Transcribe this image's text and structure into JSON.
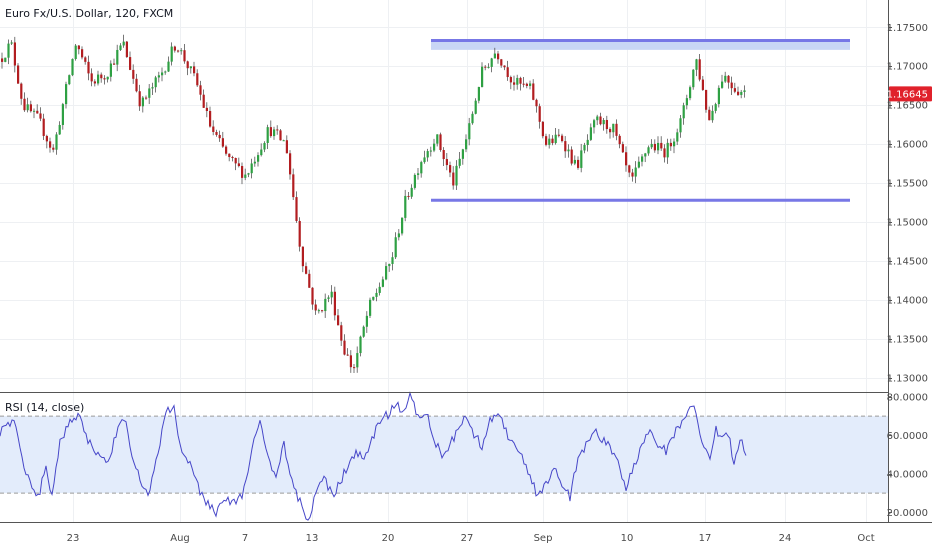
{
  "header": {
    "symbol_title": "Euro Fx/U.S. Dollar, 120, FXCM"
  },
  "price_tag": {
    "value": "1.16645",
    "color": "#e0212b"
  },
  "rsi_panel": {
    "label": "RSI (14, close)"
  },
  "colors": {
    "up_candle": "#2ea043",
    "down_candle": "#b21d20",
    "wick": "#555555",
    "zone_fill": "#c9d6f5",
    "zone_line": "#7777e6",
    "rsi_line": "#4646c8",
    "rsi_band": "#e3ecfb"
  },
  "chart_data": [
    {
      "type": "candlestick",
      "title": "Euro Fx/U.S. Dollar, 120, FXCM",
      "y_axis": {
        "ticks": [
          "1.13000",
          "1.13500",
          "1.14000",
          "1.14500",
          "1.15000",
          "1.15500",
          "1.16000",
          "1.16500",
          "1.17000",
          "1.17500"
        ],
        "range": [
          1.1282,
          1.1785
        ]
      },
      "x_axis": {
        "ticks": [
          "23",
          "Aug",
          "7",
          "13",
          "20",
          "27",
          "Sep",
          "10",
          "17",
          "24",
          "Oct"
        ]
      },
      "last_price": 1.16645,
      "close_path": [
        {
          "x": 0,
          "y": 1.171
        },
        {
          "x": 10,
          "y": 1.173
        },
        {
          "x": 22,
          "y": 1.165
        },
        {
          "x": 38,
          "y": 1.163
        },
        {
          "x": 52,
          "y": 1.159
        },
        {
          "x": 65,
          "y": 1.167
        },
        {
          "x": 75,
          "y": 1.173
        },
        {
          "x": 90,
          "y": 1.168
        },
        {
          "x": 105,
          "y": 1.169
        },
        {
          "x": 122,
          "y": 1.173
        },
        {
          "x": 140,
          "y": 1.165
        },
        {
          "x": 160,
          "y": 1.169
        },
        {
          "x": 175,
          "y": 1.173
        },
        {
          "x": 195,
          "y": 1.168
        },
        {
          "x": 210,
          "y": 1.162
        },
        {
          "x": 228,
          "y": 1.158
        },
        {
          "x": 245,
          "y": 1.156
        },
        {
          "x": 268,
          "y": 1.162
        },
        {
          "x": 285,
          "y": 1.16
        },
        {
          "x": 300,
          "y": 1.146
        },
        {
          "x": 315,
          "y": 1.138
        },
        {
          "x": 330,
          "y": 1.141
        },
        {
          "x": 342,
          "y": 1.134
        },
        {
          "x": 352,
          "y": 1.131
        },
        {
          "x": 368,
          "y": 1.139
        },
        {
          "x": 390,
          "y": 1.145
        },
        {
          "x": 405,
          "y": 1.153
        },
        {
          "x": 420,
          "y": 1.158
        },
        {
          "x": 435,
          "y": 1.161
        },
        {
          "x": 452,
          "y": 1.155
        },
        {
          "x": 468,
          "y": 1.162
        },
        {
          "x": 480,
          "y": 1.169
        },
        {
          "x": 495,
          "y": 1.172
        },
        {
          "x": 512,
          "y": 1.168
        },
        {
          "x": 530,
          "y": 1.167
        },
        {
          "x": 545,
          "y": 1.16
        },
        {
          "x": 560,
          "y": 1.161
        },
        {
          "x": 575,
          "y": 1.157
        },
        {
          "x": 595,
          "y": 1.163
        },
        {
          "x": 612,
          "y": 1.162
        },
        {
          "x": 630,
          "y": 1.155
        },
        {
          "x": 648,
          "y": 1.16
        },
        {
          "x": 665,
          "y": 1.159
        },
        {
          "x": 680,
          "y": 1.163
        },
        {
          "x": 695,
          "y": 1.171
        },
        {
          "x": 708,
          "y": 1.163
        },
        {
          "x": 722,
          "y": 1.169
        },
        {
          "x": 735,
          "y": 1.167
        },
        {
          "x": 746,
          "y": 1.16645
        }
      ],
      "annotations": [
        {
          "type": "resistance_zone",
          "from": 1.1721,
          "to": 1.1733
        },
        {
          "type": "support_line",
          "value": 1.1528
        }
      ]
    },
    {
      "type": "line",
      "title": "RSI (14, close)",
      "y_axis": {
        "ticks": [
          "20.0000",
          "40.0000",
          "60.0000",
          "80.0000"
        ],
        "range": [
          15,
          82
        ]
      },
      "bands": [
        30,
        70
      ],
      "rsi_path": [
        {
          "x": 0,
          "y": 62
        },
        {
          "x": 8,
          "y": 65
        },
        {
          "x": 14,
          "y": 70
        },
        {
          "x": 22,
          "y": 48
        },
        {
          "x": 30,
          "y": 35
        },
        {
          "x": 38,
          "y": 27
        },
        {
          "x": 46,
          "y": 45
        },
        {
          "x": 52,
          "y": 28
        },
        {
          "x": 60,
          "y": 58
        },
        {
          "x": 70,
          "y": 66
        },
        {
          "x": 78,
          "y": 71
        },
        {
          "x": 88,
          "y": 58
        },
        {
          "x": 98,
          "y": 50
        },
        {
          "x": 108,
          "y": 46
        },
        {
          "x": 118,
          "y": 63
        },
        {
          "x": 125,
          "y": 68
        },
        {
          "x": 132,
          "y": 48
        },
        {
          "x": 140,
          "y": 38
        },
        {
          "x": 148,
          "y": 27
        },
        {
          "x": 158,
          "y": 52
        },
        {
          "x": 166,
          "y": 72
        },
        {
          "x": 174,
          "y": 73
        },
        {
          "x": 182,
          "y": 52
        },
        {
          "x": 192,
          "y": 42
        },
        {
          "x": 200,
          "y": 30
        },
        {
          "x": 208,
          "y": 25
        },
        {
          "x": 216,
          "y": 18
        },
        {
          "x": 225,
          "y": 28
        },
        {
          "x": 235,
          "y": 24
        },
        {
          "x": 245,
          "y": 32
        },
        {
          "x": 253,
          "y": 55
        },
        {
          "x": 260,
          "y": 68
        },
        {
          "x": 268,
          "y": 48
        },
        {
          "x": 276,
          "y": 38
        },
        {
          "x": 284,
          "y": 55
        },
        {
          "x": 292,
          "y": 35
        },
        {
          "x": 300,
          "y": 25
        },
        {
          "x": 308,
          "y": 16
        },
        {
          "x": 316,
          "y": 30
        },
        {
          "x": 324,
          "y": 40
        },
        {
          "x": 332,
          "y": 28
        },
        {
          "x": 340,
          "y": 35
        },
        {
          "x": 348,
          "y": 45
        },
        {
          "x": 356,
          "y": 50
        },
        {
          "x": 364,
          "y": 48
        },
        {
          "x": 372,
          "y": 58
        },
        {
          "x": 380,
          "y": 68
        },
        {
          "x": 388,
          "y": 71
        },
        {
          "x": 396,
          "y": 75
        },
        {
          "x": 404,
          "y": 74
        },
        {
          "x": 410,
          "y": 82
        },
        {
          "x": 418,
          "y": 70
        },
        {
          "x": 426,
          "y": 72
        },
        {
          "x": 434,
          "y": 58
        },
        {
          "x": 442,
          "y": 50
        },
        {
          "x": 450,
          "y": 55
        },
        {
          "x": 458,
          "y": 62
        },
        {
          "x": 466,
          "y": 70
        },
        {
          "x": 474,
          "y": 60
        },
        {
          "x": 482,
          "y": 55
        },
        {
          "x": 490,
          "y": 68
        },
        {
          "x": 498,
          "y": 72
        },
        {
          "x": 506,
          "y": 62
        },
        {
          "x": 514,
          "y": 55
        },
        {
          "x": 522,
          "y": 48
        },
        {
          "x": 530,
          "y": 40
        },
        {
          "x": 538,
          "y": 28
        },
        {
          "x": 546,
          "y": 35
        },
        {
          "x": 554,
          "y": 42
        },
        {
          "x": 562,
          "y": 35
        },
        {
          "x": 570,
          "y": 28
        },
        {
          "x": 578,
          "y": 48
        },
        {
          "x": 586,
          "y": 55
        },
        {
          "x": 594,
          "y": 62
        },
        {
          "x": 602,
          "y": 58
        },
        {
          "x": 610,
          "y": 55
        },
        {
          "x": 618,
          "y": 45
        },
        {
          "x": 626,
          "y": 32
        },
        {
          "x": 634,
          "y": 45
        },
        {
          "x": 642,
          "y": 55
        },
        {
          "x": 650,
          "y": 62
        },
        {
          "x": 658,
          "y": 55
        },
        {
          "x": 666,
          "y": 52
        },
        {
          "x": 674,
          "y": 60
        },
        {
          "x": 682,
          "y": 68
        },
        {
          "x": 690,
          "y": 75
        },
        {
          "x": 696,
          "y": 72
        },
        {
          "x": 702,
          "y": 55
        },
        {
          "x": 710,
          "y": 48
        },
        {
          "x": 716,
          "y": 64
        },
        {
          "x": 722,
          "y": 58
        },
        {
          "x": 728,
          "y": 62
        },
        {
          "x": 734,
          "y": 45
        },
        {
          "x": 740,
          "y": 60
        },
        {
          "x": 746,
          "y": 48
        }
      ]
    }
  ]
}
